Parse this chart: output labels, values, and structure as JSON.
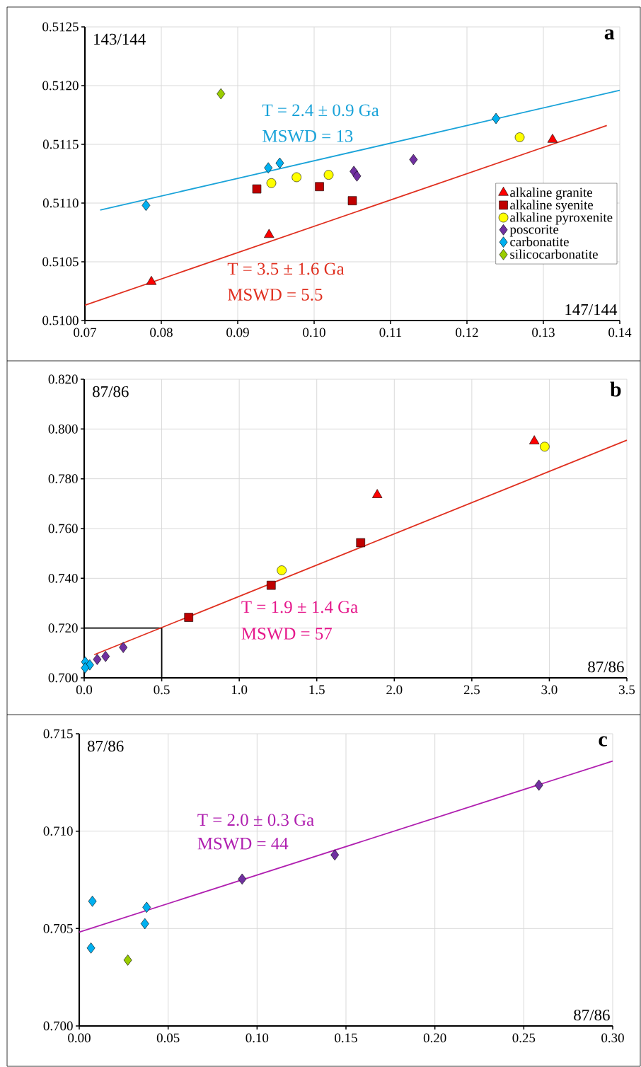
{
  "chart_data": [
    {
      "type": "scatter",
      "title": "a",
      "xlabel": "147/144",
      "ylabel": "143/144",
      "xlim": [
        0.07,
        0.14
      ],
      "ylim": [
        0.51,
        0.5125
      ],
      "xticks": [
        {
          "value": 0.07,
          "label": "0.07"
        },
        {
          "value": 0.08,
          "label": "0.08"
        },
        {
          "value": 0.09,
          "label": "0.09"
        },
        {
          "value": 0.1,
          "label": "0.10"
        },
        {
          "value": 0.11,
          "label": "0.11"
        },
        {
          "value": 0.12,
          "label": "0.12"
        },
        {
          "value": 0.13,
          "label": "0.13"
        },
        {
          "value": 0.14,
          "label": "0.14"
        }
      ],
      "yticks": [
        {
          "value": 0.51,
          "label": "0.5100"
        },
        {
          "value": 0.5105,
          "label": "0.5105"
        },
        {
          "value": 0.511,
          "label": "0.5110"
        },
        {
          "value": 0.5115,
          "label": "0.5115"
        },
        {
          "value": 0.512,
          "label": "0.5120"
        },
        {
          "value": 0.5125,
          "label": "0.5125"
        }
      ],
      "grid": true,
      "legend": "right",
      "series": [
        {
          "name": "alkaline granite",
          "color": "#ff0000",
          "marker": "triangle",
          "x": [
            0.0787,
            0.0941,
            0.1312
          ],
          "values": [
            0.51033,
            0.51073,
            0.51154
          ]
        },
        {
          "name": "alkaline syenite",
          "color": "#c00000",
          "marker": "square",
          "x": [
            0.0925,
            0.1007,
            0.105
          ],
          "values": [
            0.51112,
            0.51114,
            0.51102
          ]
        },
        {
          "name": "alkaline pyroxenite",
          "color": "#ffff00",
          "marker": "circle",
          "x": [
            0.0944,
            0.0977,
            0.1019,
            0.1269
          ],
          "values": [
            0.51117,
            0.51122,
            0.51124,
            0.51156
          ]
        },
        {
          "name": "poscorite",
          "color": "#7030a0",
          "marker": "diamond",
          "x": [
            0.1052,
            0.1056,
            0.113
          ],
          "values": [
            0.51127,
            0.51123,
            0.51137
          ]
        },
        {
          "name": "carbonatite",
          "color": "#00b0f0",
          "marker": "diamond",
          "x": [
            0.078,
            0.094,
            0.0955,
            0.1238
          ],
          "values": [
            0.51098,
            0.5113,
            0.51134,
            0.51172
          ]
        },
        {
          "name": "silicocarbonatite",
          "color": "#9acd00",
          "marker": "diamond",
          "x": [
            0.0878
          ],
          "values": [
            0.51193
          ]
        },
        {
          "type": "line",
          "color": "#1aa3d9",
          "x": [
            0.072,
            0.14
          ],
          "values": [
            0.51094,
            0.51196
          ]
        },
        {
          "type": "line",
          "color": "#e03020",
          "x": [
            0.07,
            0.1383
          ],
          "values": [
            0.51013,
            0.51166
          ]
        }
      ],
      "annotations": [
        "T = 2.4 ± 0.9 Ga",
        "MSWD = 13",
        "T = 3.5 ± 1.6 Ga",
        "MSWD = 5.5"
      ]
    },
    {
      "type": "scatter",
      "title": "b",
      "xlabel": "87/86",
      "ylabel": "87/86",
      "xlim": [
        0,
        3.5
      ],
      "ylim": [
        0.7,
        0.82
      ],
      "xticks": [
        {
          "value": 0,
          "label": "0.0"
        },
        {
          "value": 0.5,
          "label": "0.5"
        },
        {
          "value": 1,
          "label": "1.0"
        },
        {
          "value": 1.5,
          "label": "1.5"
        },
        {
          "value": 2,
          "label": "2.0"
        },
        {
          "value": 2.5,
          "label": "2.5"
        },
        {
          "value": 3,
          "label": "3.0"
        },
        {
          "value": 3.5,
          "label": "3.5"
        }
      ],
      "yticks": [
        {
          "value": 0.7,
          "label": "0.700"
        },
        {
          "value": 0.72,
          "label": "0.720"
        },
        {
          "value": 0.74,
          "label": "0.740"
        },
        {
          "value": 0.76,
          "label": "0.760"
        },
        {
          "value": 0.78,
          "label": "0.780"
        },
        {
          "value": 0.8,
          "label": "0.800"
        },
        {
          "value": 0.82,
          "label": "0.820"
        }
      ],
      "grid": true,
      "series": [
        {
          "color": "#000000",
          "type": "line",
          "x": [
            0,
            0.5,
            0.5
          ],
          "values": [
            0.72,
            0.72,
            0.7
          ]
        },
        {
          "color": "#ff0000",
          "marker": "triangle",
          "x": [
            1.89,
            2.903
          ],
          "values": [
            0.7735,
            0.7951
          ]
        },
        {
          "color": "#c00000",
          "marker": "square",
          "x": [
            0.674,
            1.206,
            1.783
          ],
          "values": [
            0.7243,
            0.7372,
            0.7543
          ]
        },
        {
          "color": "#ffff00",
          "marker": "circle",
          "x": [
            1.274,
            2.97
          ],
          "values": [
            0.7432,
            0.7929
          ]
        },
        {
          "color": "#7030a0",
          "marker": "diamond",
          "x": [
            0.084,
            0.138,
            0.252
          ],
          "values": [
            0.7074,
            0.7086,
            0.7122
          ]
        },
        {
          "color": "#00b0f0",
          "marker": "diamond",
          "x": [
            0.007,
            0.036,
            0.006
          ],
          "values": [
            0.7064,
            0.7052,
            0.704
          ]
        },
        {
          "type": "line",
          "color": "#e03020",
          "x": [
            0.065,
            3.5
          ],
          "values": [
            0.7093,
            0.7955
          ]
        }
      ],
      "annotations": [
        "T = 1.9 ± 1.4 Ga",
        "MSWD = 57"
      ]
    },
    {
      "type": "scatter",
      "title": "c",
      "xlabel": "87/86",
      "ylabel": "87/86",
      "xlim": [
        0,
        0.3
      ],
      "ylim": [
        0.7,
        0.715
      ],
      "xticks": [
        {
          "value": 0,
          "label": "0.00"
        },
        {
          "value": 0.05,
          "label": "0.05"
        },
        {
          "value": 0.1,
          "label": "0.10"
        },
        {
          "value": 0.15,
          "label": "0.15"
        },
        {
          "value": 0.2,
          "label": "0.20"
        },
        {
          "value": 0.25,
          "label": "0.25"
        },
        {
          "value": 0.3,
          "label": "0.30"
        }
      ],
      "yticks": [
        {
          "value": 0.7,
          "label": "0.700"
        },
        {
          "value": 0.705,
          "label": "0.705"
        },
        {
          "value": 0.71,
          "label": "0.710"
        },
        {
          "value": 0.715,
          "label": "0.715"
        }
      ],
      "grid": true,
      "series": [
        {
          "color": "#7030a0",
          "marker": "diamond",
          "x": [
            0.0916,
            0.1437,
            0.2585
          ],
          "values": [
            0.70754,
            0.70878,
            0.71236
          ]
        },
        {
          "color": "#00b0f0",
          "marker": "diamond",
          "x": [
            0.0074,
            0.0379,
            0.0369,
            0.0066
          ],
          "values": [
            0.7064,
            0.70609,
            0.70525,
            0.704
          ]
        },
        {
          "color": "#9acd00",
          "marker": "diamond",
          "x": [
            0.0273
          ],
          "values": [
            0.70338
          ]
        },
        {
          "type": "line",
          "color": "#b020b0",
          "x": [
            0,
            0.3
          ],
          "values": [
            0.70482,
            0.7136
          ]
        }
      ],
      "annotations": [
        "T = 2.0 ± 0.3 Ga",
        "MSWD = 44"
      ]
    }
  ]
}
